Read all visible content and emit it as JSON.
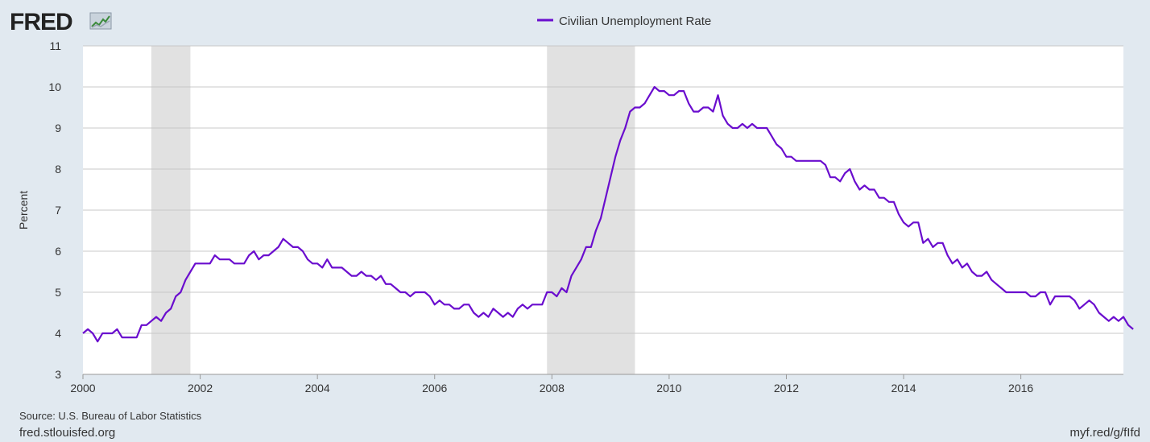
{
  "brand": {
    "logo_text": "FRED"
  },
  "chart_data": {
    "type": "line",
    "title": "",
    "xlabel": "",
    "ylabel": "Percent",
    "ylim": [
      3,
      11
    ],
    "xlim": [
      "2000-01",
      "2017-10"
    ],
    "yticks": [
      "3",
      "4",
      "5",
      "6",
      "7",
      "8",
      "9",
      "10",
      "11"
    ],
    "xticks": [
      "2000",
      "2002",
      "2004",
      "2006",
      "2008",
      "2010",
      "2012",
      "2014",
      "2016"
    ],
    "grid": true,
    "legend_position": "top-center",
    "line_color": "#6a0dce",
    "recession_color": "#e1e1e1",
    "recessions": [
      [
        "2001-03",
        "2001-11"
      ],
      [
        "2007-12",
        "2009-06"
      ]
    ],
    "start": "2000-01",
    "series": [
      {
        "name": "Civilian Unemployment Rate",
        "values": [
          4.0,
          4.1,
          4.0,
          3.8,
          4.0,
          4.0,
          4.0,
          4.1,
          3.9,
          3.9,
          3.9,
          3.9,
          4.2,
          4.2,
          4.3,
          4.4,
          4.3,
          4.5,
          4.6,
          4.9,
          5.0,
          5.3,
          5.5,
          5.7,
          5.7,
          5.7,
          5.7,
          5.9,
          5.8,
          5.8,
          5.8,
          5.7,
          5.7,
          5.7,
          5.9,
          6.0,
          5.8,
          5.9,
          5.9,
          6.0,
          6.1,
          6.3,
          6.2,
          6.1,
          6.1,
          6.0,
          5.8,
          5.7,
          5.7,
          5.6,
          5.8,
          5.6,
          5.6,
          5.6,
          5.5,
          5.4,
          5.4,
          5.5,
          5.4,
          5.4,
          5.3,
          5.4,
          5.2,
          5.2,
          5.1,
          5.0,
          5.0,
          4.9,
          5.0,
          5.0,
          5.0,
          4.9,
          4.7,
          4.8,
          4.7,
          4.7,
          4.6,
          4.6,
          4.7,
          4.7,
          4.5,
          4.4,
          4.5,
          4.4,
          4.6,
          4.5,
          4.4,
          4.5,
          4.4,
          4.6,
          4.7,
          4.6,
          4.7,
          4.7,
          4.7,
          5.0,
          5.0,
          4.9,
          5.1,
          5.0,
          5.4,
          5.6,
          5.8,
          6.1,
          6.1,
          6.5,
          6.8,
          7.3,
          7.8,
          8.3,
          8.7,
          9.0,
          9.4,
          9.5,
          9.5,
          9.6,
          9.8,
          10.0,
          9.9,
          9.9,
          9.8,
          9.8,
          9.9,
          9.9,
          9.6,
          9.4,
          9.4,
          9.5,
          9.5,
          9.4,
          9.8,
          9.3,
          9.1,
          9.0,
          9.0,
          9.1,
          9.0,
          9.1,
          9.0,
          9.0,
          9.0,
          8.8,
          8.6,
          8.5,
          8.3,
          8.3,
          8.2,
          8.2,
          8.2,
          8.2,
          8.2,
          8.2,
          8.1,
          7.8,
          7.8,
          7.7,
          7.9,
          8.0,
          7.7,
          7.5,
          7.6,
          7.5,
          7.5,
          7.3,
          7.3,
          7.2,
          7.2,
          6.9,
          6.7,
          6.6,
          6.7,
          6.7,
          6.2,
          6.3,
          6.1,
          6.2,
          6.2,
          5.9,
          5.7,
          5.8,
          5.6,
          5.7,
          5.5,
          5.4,
          5.4,
          5.5,
          5.3,
          5.2,
          5.1,
          5.0,
          5.0,
          5.0,
          5.0,
          5.0,
          4.9,
          4.9,
          5.0,
          5.0,
          4.7,
          4.9,
          4.9,
          4.9,
          4.9,
          4.8,
          4.6,
          4.7,
          4.8,
          4.7,
          4.5,
          4.4,
          4.3,
          4.4,
          4.3,
          4.4,
          4.2,
          4.1
        ]
      }
    ]
  },
  "footer": {
    "source": "Source: U.S. Bureau of Labor Statistics",
    "site": "fred.stlouisfed.org",
    "short_url": "myf.red/g/fIfd"
  }
}
